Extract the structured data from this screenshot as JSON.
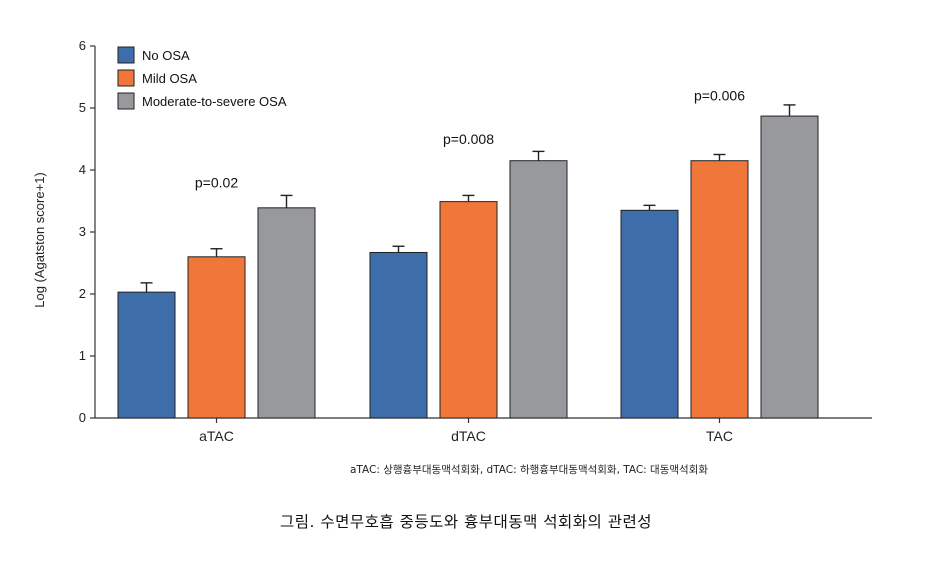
{
  "chart_data": {
    "type": "bar",
    "categories": [
      "aTAC",
      "dTAC",
      "TAC"
    ],
    "series": [
      {
        "name": "No OSA",
        "color": "#3d6ea9",
        "values": [
          2.03,
          2.67,
          3.35
        ],
        "errors": [
          0.15,
          0.1,
          0.08
        ]
      },
      {
        "name": "Mild OSA",
        "color": "#f0763a",
        "values": [
          2.6,
          3.49,
          4.15
        ],
        "errors": [
          0.13,
          0.1,
          0.1
        ]
      },
      {
        "name": "Moderate-to-severe OSA",
        "color": "#97999c",
        "values": [
          3.39,
          4.15,
          4.87
        ],
        "errors": [
          0.2,
          0.15,
          0.18
        ]
      }
    ],
    "ylabel": "Log (Agatston score+1)",
    "ylim": [
      0,
      6
    ],
    "yticks": [
      "0",
      "1",
      "2",
      "3",
      "4",
      "5",
      "6"
    ],
    "annotations": [
      {
        "category": "aTAC",
        "text": "p=0.02",
        "y": 3.72
      },
      {
        "category": "dTAC",
        "text": "p=0.008",
        "y": 4.42
      },
      {
        "category": "TAC",
        "text": "p=0.006",
        "y": 5.12
      }
    ],
    "legend_position": "top-left",
    "grid": false
  },
  "footnote": "aTAC: 상행흉부대동맥석회화, dTAC: 하행흉부대동맥석회화, TAC: 대동맥석회화",
  "caption": "그림. 수면무호흡 중등도와 흉부대동맥 석회화의 관련성"
}
